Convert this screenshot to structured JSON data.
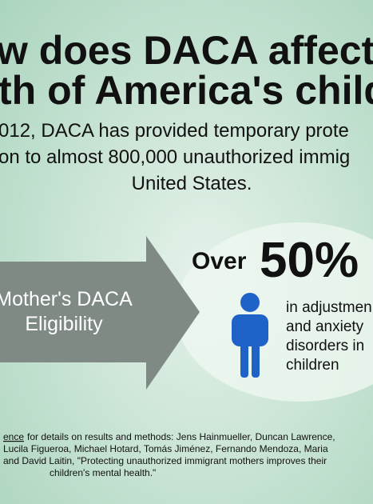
{
  "header": {
    "title_lines": [
      "w does DACA affect",
      "th of America's child"
    ],
    "subtitle_lines": [
      "012, DACA has provided temporary prote",
      "on to almost 800,000 unauthorized immig",
      "United States."
    ]
  },
  "arrow": {
    "label_lines": [
      "Mother's DACA",
      "Eligibility"
    ]
  },
  "stat": {
    "prefix": "Over",
    "value": "50%",
    "description_lines": [
      "in adjustmen",
      "and anxiety",
      "disorders in",
      "children"
    ]
  },
  "citation": {
    "link": "ence",
    "lines": [
      "for details on results and methods: Jens Hainmueller, Duncan Lawrence,",
      "Lucila Figueroa, Michael Hotard, Tomás Jiménez, Fernando Mendoza, Maria",
      "and David Laitin, \"Protecting unauthorized immigrant mothers improves their",
      "children's mental health.\""
    ]
  }
}
